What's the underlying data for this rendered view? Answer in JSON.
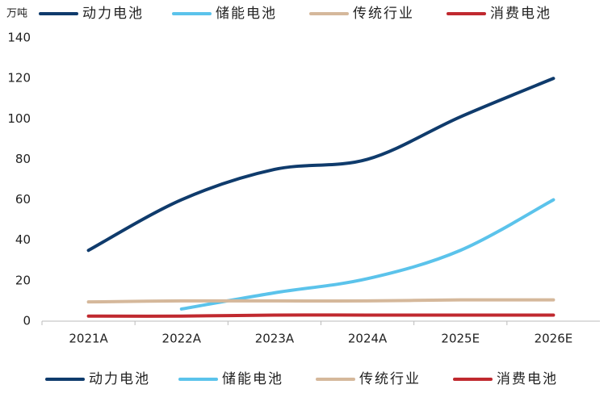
{
  "chart_data": {
    "type": "line",
    "y_unit": "万吨",
    "categories": [
      "2021A",
      "2022A",
      "2023A",
      "2024A",
      "2025E",
      "2026E"
    ],
    "series": [
      {
        "name": "动力电池",
        "color": "#0f3b6c",
        "values": [
          35,
          60,
          75,
          80,
          101,
          120
        ]
      },
      {
        "name": "储能电池",
        "color": "#5bc3eb",
        "values": [
          null,
          6,
          14,
          21,
          35,
          60
        ]
      },
      {
        "name": "传统行业",
        "color": "#d5b89b",
        "values": [
          9.5,
          10,
          10,
          10,
          10.5,
          10.5
        ]
      },
      {
        "name": "消费电池",
        "color": "#c0292f",
        "values": [
          2.5,
          2.5,
          3,
          3,
          3,
          3
        ]
      }
    ],
    "ylim": [
      0,
      140
    ],
    "yticks": [
      0,
      20,
      40,
      60,
      80,
      100,
      120,
      140
    ]
  }
}
